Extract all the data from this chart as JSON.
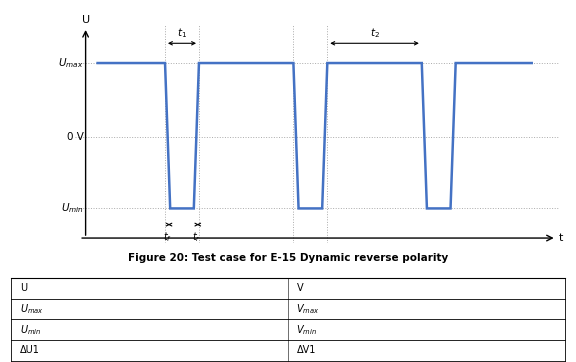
{
  "signal_color": "#4472C4",
  "signal_linewidth": 1.8,
  "umax": 1.0,
  "umin": -0.62,
  "u0": 0.18,
  "title": "Figure 20: Test case for E-15 Dynamic reverse polarity",
  "xlabel": "t",
  "ylabel": "U",
  "dashed_color": "#aaaaaa",
  "background_color": "#ffffff",
  "table_rows": [
    [
      "U",
      "V"
    ],
    [
      "$U_{max}$",
      "$V_{max}$"
    ],
    [
      "$U_{min}$",
      "$V_{min}$"
    ],
    [
      "ΔU1",
      "ΔV1"
    ]
  ]
}
